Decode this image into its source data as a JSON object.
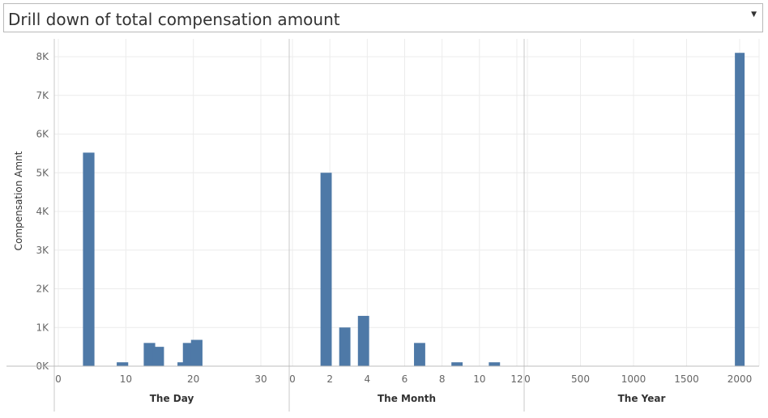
{
  "selector": {
    "value": "Drill down of total compensation amount",
    "icon": "chevron-down-icon"
  },
  "colors": {
    "bar": "#4e79a7",
    "grid": "#ececec",
    "divider": "#c8c8c8"
  },
  "chart_data": {
    "type": "bar",
    "ylabel": "Compensation Amnt",
    "ylim": [
      0,
      8500
    ],
    "yticks": [
      0,
      1000,
      2000,
      3000,
      4000,
      5000,
      6000,
      7000,
      8000
    ],
    "ytick_labels": [
      "0K",
      "1K",
      "2K",
      "3K",
      "4K",
      "5K",
      "6K",
      "7K",
      "8K"
    ],
    "grid": true,
    "panels": [
      {
        "name": "day",
        "xlabel": "The Day",
        "xlim": [
          0,
          33.5
        ],
        "xticks": [
          0,
          10,
          20,
          30
        ],
        "bar_width": 1.7,
        "bars": [
          {
            "x": 4.5,
            "value": 5520
          },
          {
            "x": 9.5,
            "value": 100
          },
          {
            "x": 13.5,
            "value": 600
          },
          {
            "x": 14.8,
            "value": 500
          },
          {
            "x": 18.5,
            "value": 100
          },
          {
            "x": 19.3,
            "value": 600
          },
          {
            "x": 20.5,
            "value": 680
          }
        ]
      },
      {
        "name": "month",
        "xlabel": "The Month",
        "xlim": [
          0,
          12
        ],
        "xticks": [
          0,
          2,
          4,
          6,
          8,
          10,
          12
        ],
        "bar_width": 0.6,
        "bars": [
          {
            "x": 1.8,
            "value": 5000
          },
          {
            "x": 2.8,
            "value": 1000
          },
          {
            "x": 3.8,
            "value": 1300
          },
          {
            "x": 6.8,
            "value": 600
          },
          {
            "x": 8.8,
            "value": 100
          },
          {
            "x": 10.8,
            "value": 100
          }
        ]
      },
      {
        "name": "year",
        "xlabel": "The Year",
        "xlim": [
          0,
          2100
        ],
        "xticks": [
          0,
          500,
          1000,
          1500,
          2000
        ],
        "bar_width": 24,
        "bars": [
          {
            "x": 2001,
            "value": 8100
          }
        ]
      }
    ]
  }
}
